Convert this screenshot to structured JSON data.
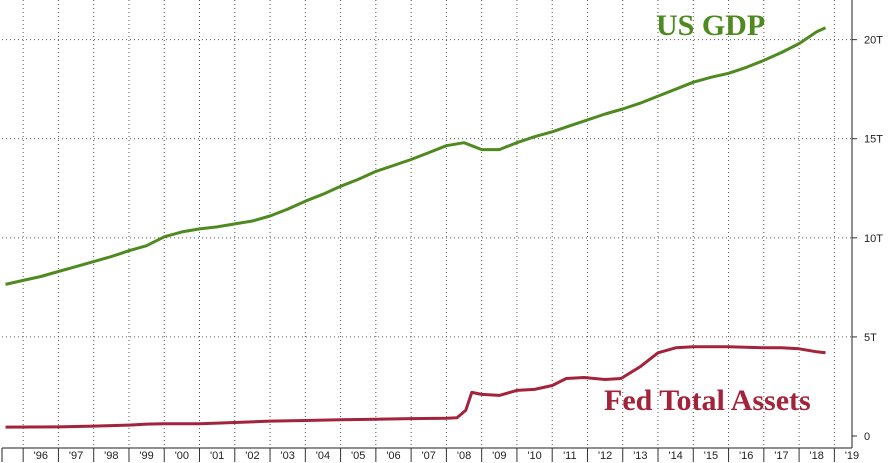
{
  "chart_data": {
    "type": "line",
    "x_tick_labels": [
      "'96",
      "'97",
      "'98",
      "'99",
      "'00",
      "'01",
      "'02",
      "'03",
      "'04",
      "'05",
      "'06",
      "'07",
      "'08",
      "'09",
      "'10",
      "'11",
      "'12",
      "'13",
      "'14",
      "'15",
      "'16",
      "'17",
      "'18",
      "'19"
    ],
    "y_tick_labels": [
      "0",
      "5T",
      "10T",
      "15T",
      "20T"
    ],
    "ylim": [
      0,
      22
    ],
    "xlim": [
      1995.4,
      2019.5
    ],
    "grid": true,
    "y_axis_side": "right",
    "colors": {
      "us_gdp": "#4e8a1f",
      "fed_total_assets": "#a3233a"
    },
    "series": [
      {
        "name": "US GDP",
        "key": "us_gdp",
        "points": [
          [
            1995.5,
            7.65
          ],
          [
            1996.0,
            7.85
          ],
          [
            1996.5,
            8.05
          ],
          [
            1997.0,
            8.3
          ],
          [
            1997.5,
            8.55
          ],
          [
            1998.0,
            8.8
          ],
          [
            1998.5,
            9.05
          ],
          [
            1999.0,
            9.35
          ],
          [
            1999.5,
            9.6
          ],
          [
            2000.0,
            10.05
          ],
          [
            2000.5,
            10.3
          ],
          [
            2001.0,
            10.45
          ],
          [
            2001.5,
            10.55
          ],
          [
            2002.0,
            10.7
          ],
          [
            2002.5,
            10.85
          ],
          [
            2003.0,
            11.1
          ],
          [
            2003.5,
            11.45
          ],
          [
            2004.0,
            11.85
          ],
          [
            2004.5,
            12.2
          ],
          [
            2005.0,
            12.6
          ],
          [
            2005.5,
            12.95
          ],
          [
            2006.0,
            13.35
          ],
          [
            2006.5,
            13.65
          ],
          [
            2007.0,
            13.95
          ],
          [
            2007.5,
            14.3
          ],
          [
            2008.0,
            14.65
          ],
          [
            2008.5,
            14.8
          ],
          [
            2009.0,
            14.45
          ],
          [
            2009.5,
            14.45
          ],
          [
            2010.0,
            14.8
          ],
          [
            2010.5,
            15.1
          ],
          [
            2011.0,
            15.35
          ],
          [
            2011.5,
            15.65
          ],
          [
            2012.0,
            15.95
          ],
          [
            2012.5,
            16.25
          ],
          [
            2013.0,
            16.5
          ],
          [
            2013.5,
            16.8
          ],
          [
            2014.0,
            17.15
          ],
          [
            2014.5,
            17.5
          ],
          [
            2015.0,
            17.85
          ],
          [
            2015.5,
            18.1
          ],
          [
            2016.0,
            18.3
          ],
          [
            2016.5,
            18.6
          ],
          [
            2017.0,
            18.95
          ],
          [
            2017.5,
            19.35
          ],
          [
            2018.0,
            19.8
          ],
          [
            2018.5,
            20.4
          ],
          [
            2018.75,
            20.6
          ]
        ]
      },
      {
        "name": "Fed Total Assets",
        "key": "fed_total_assets",
        "points": [
          [
            1995.5,
            0.45
          ],
          [
            1997.0,
            0.46
          ],
          [
            1998.0,
            0.5
          ],
          [
            1999.0,
            0.55
          ],
          [
            1999.5,
            0.6
          ],
          [
            2000.0,
            0.62
          ],
          [
            2001.0,
            0.62
          ],
          [
            2002.0,
            0.68
          ],
          [
            2003.0,
            0.75
          ],
          [
            2004.0,
            0.78
          ],
          [
            2005.0,
            0.82
          ],
          [
            2006.0,
            0.85
          ],
          [
            2007.0,
            0.88
          ],
          [
            2008.0,
            0.9
          ],
          [
            2008.3,
            0.92
          ],
          [
            2008.55,
            1.3
          ],
          [
            2008.72,
            2.2
          ],
          [
            2009.0,
            2.1
          ],
          [
            2009.5,
            2.05
          ],
          [
            2010.0,
            2.3
          ],
          [
            2010.5,
            2.35
          ],
          [
            2011.0,
            2.55
          ],
          [
            2011.4,
            2.9
          ],
          [
            2011.9,
            2.95
          ],
          [
            2012.5,
            2.85
          ],
          [
            2012.95,
            2.9
          ],
          [
            2013.5,
            3.5
          ],
          [
            2014.0,
            4.2
          ],
          [
            2014.5,
            4.45
          ],
          [
            2015.0,
            4.5
          ],
          [
            2016.0,
            4.5
          ],
          [
            2017.0,
            4.45
          ],
          [
            2017.5,
            4.45
          ],
          [
            2018.0,
            4.4
          ],
          [
            2018.5,
            4.25
          ],
          [
            2018.75,
            4.2
          ]
        ]
      }
    ]
  }
}
